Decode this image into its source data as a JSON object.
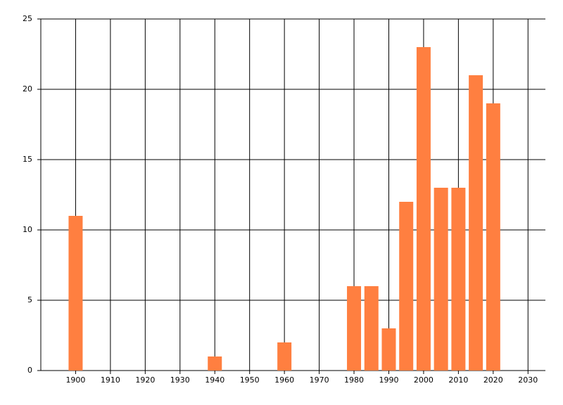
{
  "chart_data": {
    "type": "bar",
    "x": [
      1900,
      1940,
      1960,
      1980,
      1985,
      1990,
      1995,
      2000,
      2005,
      2010,
      2015,
      2020
    ],
    "values": [
      11,
      1,
      2,
      6,
      6,
      3,
      12,
      23,
      13,
      13,
      21,
      19
    ],
    "color": "#ff7f40",
    "xlim": [
      1890,
      2035
    ],
    "xticks": [
      1900,
      1910,
      1920,
      1930,
      1940,
      1950,
      1960,
      1970,
      1980,
      1990,
      2000,
      2010,
      2020,
      2030
    ],
    "ylim": [
      0,
      25
    ],
    "yticks": [
      0,
      5,
      10,
      15,
      20,
      25
    ],
    "grid": true
  }
}
